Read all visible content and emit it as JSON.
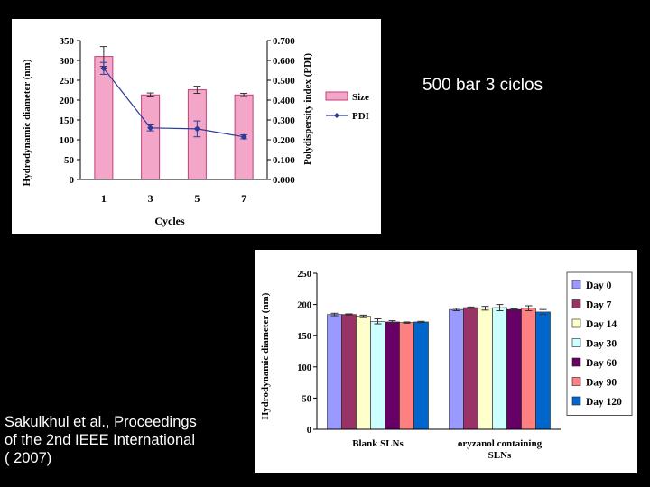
{
  "slide": {
    "title": "500 bar 3 ciclos",
    "citation": [
      "Sakulkhul et al., Proceedings",
      "of the 2nd IEEE International",
      "( 2007)"
    ]
  },
  "chart_data": [
    {
      "type": "bar",
      "categories": [
        "1",
        "3",
        "5",
        "7"
      ],
      "series": [
        {
          "name": "Size",
          "kind": "bar",
          "axis": "left",
          "color": "#f4a6c8",
          "edge": "#c0407a",
          "values": [
            310,
            213,
            226,
            213
          ],
          "errors": [
            25,
            5,
            9,
            4
          ]
        },
        {
          "name": "PDI",
          "kind": "line",
          "axis": "right",
          "color": "#2b3b9a",
          "values": [
            0.56,
            0.26,
            0.255,
            0.215
          ],
          "errors": [
            0.03,
            0.015,
            0.04,
            0.01
          ]
        }
      ],
      "xlabel": "Cycles",
      "ylabel": "Hydrodynamic diameter (nm)",
      "y2label": "Polydispersity index (PDI)",
      "ylim": [
        0,
        350
      ],
      "y2lim": [
        0,
        0.7
      ],
      "yticks": [
        "0",
        "50",
        "100",
        "150",
        "200",
        "250",
        "300",
        "350"
      ],
      "y2ticks": [
        "0.000",
        "0.100",
        "0.200",
        "0.300",
        "0.400",
        "0.500",
        "0.600",
        "0.700"
      ],
      "legend": [
        "Size",
        "PDI"
      ],
      "legend_position": "right"
    },
    {
      "type": "bar",
      "categories": [
        "Blank SLNs",
        "oryzanol containing SLNs"
      ],
      "category_lines": [
        [
          "Blank SLNs"
        ],
        [
          "oryzanol containing",
          "SLNs"
        ]
      ],
      "series": [
        {
          "name": "Day 0",
          "color": "#9a99ff",
          "values": [
            184,
            192
          ],
          "errors": [
            2,
            2
          ]
        },
        {
          "name": "Day 7",
          "color": "#993366",
          "values": [
            184,
            195
          ],
          "errors": [
            1,
            1
          ]
        },
        {
          "name": "Day 14",
          "color": "#ffffcc",
          "values": [
            181,
            194
          ],
          "errors": [
            2,
            3
          ]
        },
        {
          "name": "Day 30",
          "color": "#ccffff",
          "values": [
            173,
            195
          ],
          "errors": [
            4,
            5
          ]
        },
        {
          "name": "Day 60",
          "color": "#660066",
          "values": [
            172,
            192
          ],
          "errors": [
            2,
            1
          ]
        },
        {
          "name": "Day 90",
          "color": "#ff8080",
          "values": [
            171,
            194
          ],
          "errors": [
            1,
            4
          ]
        },
        {
          "name": "Day 120",
          "color": "#0066cc",
          "values": [
            172,
            188
          ],
          "errors": [
            1,
            4
          ]
        }
      ],
      "ylabel": "Hydrodynamic diameter (nm)",
      "ylim": [
        0,
        250
      ],
      "yticks": [
        "0",
        "50",
        "100",
        "150",
        "200",
        "250"
      ],
      "legend_position": "right"
    }
  ]
}
